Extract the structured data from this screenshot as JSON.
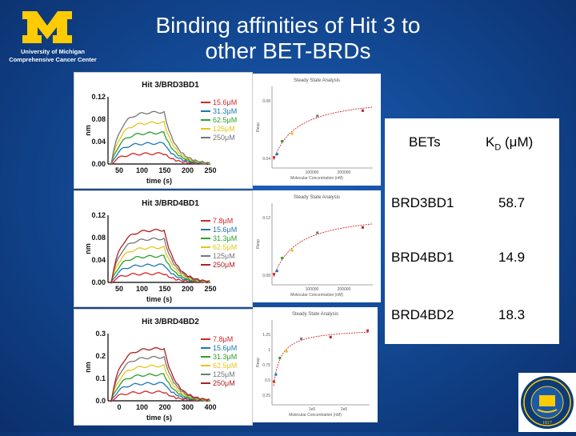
{
  "logo": {
    "line1": "University of Michigan",
    "line2": "Comprehensive Cancer Center",
    "letter": "M"
  },
  "title": {
    "line1": "Binding affinities of Hit 3 to",
    "line2": "other BET-BRDs"
  },
  "panels": [
    {
      "title": "Hit 3/BRD3BD1",
      "yticks": [
        "0.12",
        "0.08",
        "0.04",
        "0.00"
      ],
      "xticks": [
        "50",
        "100",
        "150",
        "200",
        "250"
      ],
      "ylabel": "nm",
      "xlabel": "time (s)",
      "legend": [
        "15.6μM",
        "31.3μM",
        "62.5μM",
        "125μM",
        "250μM"
      ]
    },
    {
      "title": "Hit 3/BRD4BD1",
      "yticks": [
        "0.12",
        "0.08",
        "0.04",
        "0.00"
      ],
      "xticks": [
        "50",
        "100",
        "150",
        "200",
        "250"
      ],
      "ylabel": "nm",
      "xlabel": "time (s)",
      "legend": [
        "7.8μM",
        "15.6μM",
        "31.3μM",
        "62.5μM",
        "125μM",
        "250μM"
      ]
    },
    {
      "title": "Hit 3/BRD4BD2",
      "yticks": [
        "0.3",
        "0.2",
        "0.1",
        "0.0"
      ],
      "xticks": [
        "0",
        "100",
        "200",
        "300",
        "400"
      ],
      "ylabel": "nm",
      "xlabel": "time (s)",
      "legend": [
        "7.8μM",
        "15.6μM",
        "31.3μM",
        "62.5μM",
        "125μM",
        "250μM"
      ]
    }
  ],
  "ss_plots": [
    {
      "title": "Steady State Analysis",
      "xlabel": "Molecular Concentration (nM)",
      "ylabel": "Resp",
      "yticks": [
        "0.08",
        "0.04"
      ],
      "xticks": [
        "100000",
        "200000"
      ]
    },
    {
      "title": "Steady State Analysis",
      "xlabel": "Molecular Concentration (nM)",
      "ylabel": "Resp",
      "yticks": [
        "0.12",
        "0.08"
      ],
      "xticks": [
        "100000",
        "200000"
      ]
    },
    {
      "title": "Steady State Analysis",
      "xlabel": "Molecular Concentration (nM)",
      "ylabel": "Resp",
      "yticks": [
        "1.25",
        "1",
        "0.75",
        "0.5",
        "0.25"
      ],
      "xticks": [
        "1e5",
        "2e5"
      ]
    }
  ],
  "series_colors": [
    "#d62728",
    "#1f77b4",
    "#2ca02c",
    "#e6c619",
    "#777777",
    "#b02020"
  ],
  "table": {
    "header": {
      "col1": "BETs",
      "col2_main": "K",
      "col2_sub": "D",
      "col2_unit": " (μM)"
    },
    "rows": [
      {
        "name": "BRD3BD1",
        "kd": "58.7"
      },
      {
        "name": "BRD4BD1",
        "kd": "14.9"
      },
      {
        "name": "BRD4BD2",
        "kd": "18.3"
      }
    ]
  },
  "seal": {
    "text": "UNIVERSITY OF MICHIGAN",
    "year": "1817"
  }
}
